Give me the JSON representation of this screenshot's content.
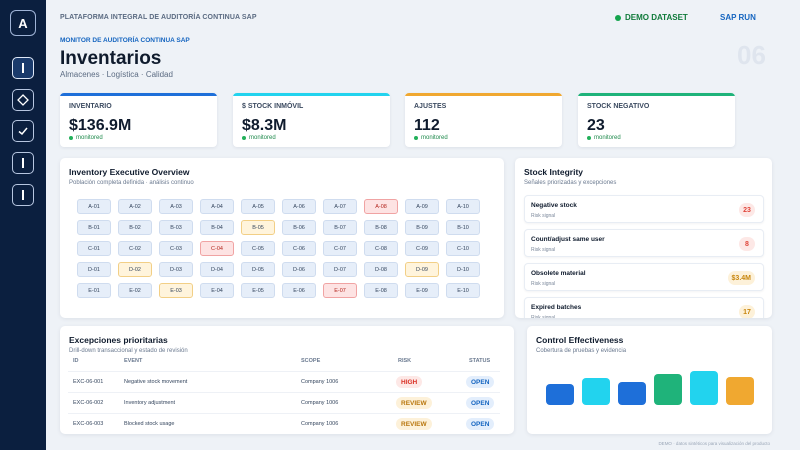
{
  "sidebar": {
    "logo": "A",
    "nav": [
      {
        "name": "nav-item-1",
        "icon": "bar-icon",
        "active": true
      },
      {
        "name": "nav-item-2",
        "icon": "diamond-icon",
        "active": false
      },
      {
        "name": "nav-item-3",
        "icon": "check-icon",
        "active": false
      },
      {
        "name": "nav-item-4",
        "icon": "bar-icon",
        "active": false
      },
      {
        "name": "nav-item-5",
        "icon": "bar-icon",
        "active": false
      }
    ]
  },
  "header": {
    "brand": "PLATAFORMA INTEGRAL DE AUDITORÍA CONTINUA SAP",
    "demo": "DEMO DATASET",
    "saprun": "SAP RUN",
    "subtitle": "MONITOR DE AUDITORÍA CONTINUA SAP",
    "title": "Inventarios",
    "tagline": "Almacenes · Logística · Calidad",
    "page_number": "06"
  },
  "kpis": [
    {
      "label": "INVENTARIO",
      "value": "$136.9M",
      "status": "monitored",
      "color": "#1e6fd9"
    },
    {
      "label": "$ STOCK INMÓVIL",
      "value": "$8.3M",
      "status": "monitored",
      "color": "#22d3ee"
    },
    {
      "label": "AJUSTES",
      "value": "112",
      "status": "monitored",
      "color": "#f0a830"
    },
    {
      "label": "STOCK NEGATIVO",
      "value": "23",
      "status": "monitored",
      "color": "#1fb37a"
    }
  ],
  "overview": {
    "title": "Inventory Executive Overview",
    "subtitle": "Población completa definida · análisis continuo",
    "rows": [
      [
        {
          "label": "A-01",
          "status": "normal"
        },
        {
          "label": "A-02",
          "status": "normal"
        },
        {
          "label": "A-03",
          "status": "normal"
        },
        {
          "label": "A-04",
          "status": "normal"
        },
        {
          "label": "A-05",
          "status": "normal"
        },
        {
          "label": "A-06",
          "status": "normal"
        },
        {
          "label": "A-07",
          "status": "normal"
        },
        {
          "label": "A-08",
          "status": "crit"
        },
        {
          "label": "A-09",
          "status": "normal"
        },
        {
          "label": "A-10",
          "status": "normal"
        }
      ],
      [
        {
          "label": "B-01",
          "status": "normal"
        },
        {
          "label": "B-02",
          "status": "normal"
        },
        {
          "label": "B-03",
          "status": "normal"
        },
        {
          "label": "B-04",
          "status": "normal"
        },
        {
          "label": "B-05",
          "status": "warn"
        },
        {
          "label": "B-06",
          "status": "normal"
        },
        {
          "label": "B-07",
          "status": "normal"
        },
        {
          "label": "B-08",
          "status": "normal"
        },
        {
          "label": "B-09",
          "status": "normal"
        },
        {
          "label": "B-10",
          "status": "normal"
        }
      ],
      [
        {
          "label": "C-01",
          "status": "normal"
        },
        {
          "label": "C-02",
          "status": "normal"
        },
        {
          "label": "C-03",
          "status": "normal"
        },
        {
          "label": "C-04",
          "status": "crit"
        },
        {
          "label": "C-05",
          "status": "normal"
        },
        {
          "label": "C-06",
          "status": "normal"
        },
        {
          "label": "C-07",
          "status": "normal"
        },
        {
          "label": "C-08",
          "status": "normal"
        },
        {
          "label": "C-09",
          "status": "normal"
        },
        {
          "label": "C-10",
          "status": "normal"
        }
      ],
      [
        {
          "label": "D-01",
          "status": "normal"
        },
        {
          "label": "D-02",
          "status": "warn"
        },
        {
          "label": "D-03",
          "status": "normal"
        },
        {
          "label": "D-04",
          "status": "normal"
        },
        {
          "label": "D-05",
          "status": "normal"
        },
        {
          "label": "D-06",
          "status": "normal"
        },
        {
          "label": "D-07",
          "status": "normal"
        },
        {
          "label": "D-08",
          "status": "normal"
        },
        {
          "label": "D-09",
          "status": "warn"
        },
        {
          "label": "D-10",
          "status": "normal"
        }
      ],
      [
        {
          "label": "E-01",
          "status": "normal"
        },
        {
          "label": "E-02",
          "status": "normal"
        },
        {
          "label": "E-03",
          "status": "warn"
        },
        {
          "label": "E-04",
          "status": "normal"
        },
        {
          "label": "E-05",
          "status": "normal"
        },
        {
          "label": "E-06",
          "status": "normal"
        },
        {
          "label": "E-07",
          "status": "crit"
        },
        {
          "label": "E-08",
          "status": "normal"
        },
        {
          "label": "E-09",
          "status": "normal"
        },
        {
          "label": "E-10",
          "status": "normal"
        }
      ]
    ]
  },
  "integrity": {
    "title": "Stock Integrity",
    "subtitle": "Señales priorizadas y excepciones",
    "items": [
      {
        "name": "Negative stock",
        "signal": "Risk signal",
        "count": "23",
        "color": "#e0453a",
        "bg": "#fde8e6"
      },
      {
        "name": "Count/adjust same user",
        "signal": "Risk signal",
        "count": "8",
        "color": "#e0453a",
        "bg": "#fde8e6"
      },
      {
        "name": "Obsolete material",
        "signal": "Risk signal",
        "count": "$3.4M",
        "color": "#c8860d",
        "bg": "#fdf1d9"
      },
      {
        "name": "Expired batches",
        "signal": "Risk signal",
        "count": "17",
        "color": "#c8860d",
        "bg": "#fdf1d9"
      }
    ]
  },
  "exceptions": {
    "title": "Excepciones prioritarias",
    "subtitle": "Drill-down transaccional y estado de revisión",
    "columns": [
      "ID",
      "EVENT",
      "SCOPE",
      "RISK",
      "STATUS"
    ],
    "rows": [
      {
        "id": "EXC-06-001",
        "event": "Negative stock movement",
        "scope": "Company 1006",
        "risk": "HIGH",
        "status": "OPEN"
      },
      {
        "id": "EXC-06-002",
        "event": "Inventory adjustment",
        "scope": "Company 1006",
        "risk": "REVIEW",
        "status": "OPEN"
      },
      {
        "id": "EXC-06-003",
        "event": "Blocked stock usage",
        "scope": "Company 1006",
        "risk": "REVIEW",
        "status": "OPEN"
      }
    ],
    "risk_colors": {
      "HIGH": {
        "fg": "#d93025",
        "bg": "#fde8e6"
      },
      "REVIEW": {
        "fg": "#b9770e",
        "bg": "#fdf1d9"
      }
    },
    "status_colors": {
      "OPEN": {
        "fg": "#1565c0",
        "bg": "#e3eefc"
      }
    }
  },
  "control": {
    "title": "Control Effectiveness",
    "subtitle": "Cobertura de pruebas y evidencia",
    "bars": [
      {
        "name": "bar-1",
        "level": 0.62,
        "color": "#1e6fd9"
      },
      {
        "name": "bar-2",
        "level": 0.78,
        "color": "#22d3ee"
      },
      {
        "name": "bar-3",
        "level": 0.68,
        "color": "#1e6fd9"
      },
      {
        "name": "bar-4",
        "level": 0.92,
        "color": "#1fb37a"
      },
      {
        "name": "bar-5",
        "level": 1.0,
        "color": "#22d3ee"
      },
      {
        "name": "bar-6",
        "level": 0.83,
        "color": "#f0a830"
      }
    ]
  },
  "footer": "DEMO · datos sintéticos para visualización del producto"
}
